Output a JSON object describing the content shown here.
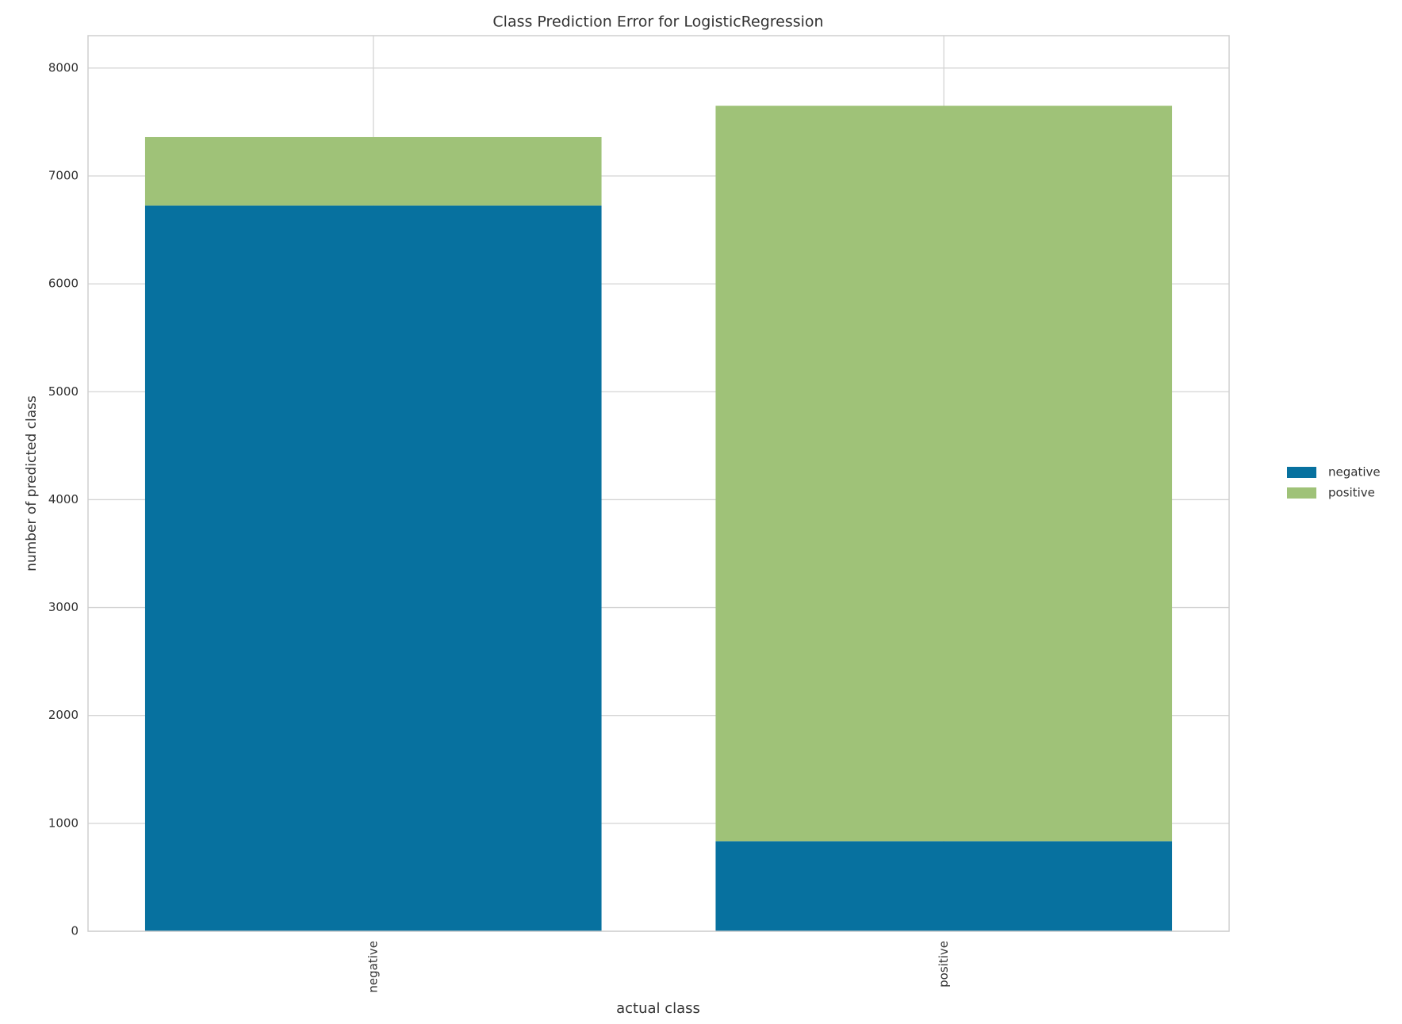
{
  "chart_data": {
    "type": "stacked_bar",
    "title": "Class Prediction Error for LogisticRegression",
    "x_label": "actual class",
    "y_label": "number of predicted class",
    "categories": [
      "negative",
      "positive"
    ],
    "series": [
      {
        "name": "negative",
        "color": "#07719f",
        "values": [
          6725,
          835
        ]
      },
      {
        "name": "positive",
        "color": "#9fc278",
        "values": [
          635,
          6815
        ]
      }
    ],
    "ylim": [
      0,
      8300
    ],
    "yticks": [
      0,
      1000,
      2000,
      3000,
      4000,
      5000,
      6000,
      7000,
      8000
    ],
    "grid": true,
    "legend": "right"
  }
}
